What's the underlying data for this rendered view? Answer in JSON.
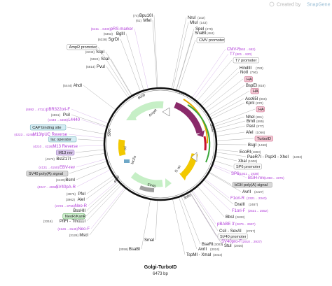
{
  "header": {
    "created_by": "Created by",
    "brand": "SnapGene"
  },
  "plasmid": {
    "name": "Golgi-TurboID",
    "size": "6473 bp"
  },
  "ticks": [
    "1000",
    "2000",
    "3000",
    "4000",
    "5000",
    "6000"
  ],
  "features": {
    "ampr": "AmpR",
    "ori": "ori",
    "cmv": "CMV enhancer",
    "f1": "f1 ori",
    "lacz": "lacZα",
    "sv40": "SV40"
  },
  "left_labels": [
    {
      "id": "pRS-marker",
      "name": "pRS-marker",
      "pos": "(6411 .. 6430)",
      "type": "primer"
    },
    {
      "id": "BglII",
      "name": "BglII",
      "pos": "(6353)",
      "type": "site"
    },
    {
      "id": "SgrDI",
      "name": "SgrDI",
      "pos": "(6338)",
      "type": "site"
    },
    {
      "id": "AmpR-promoter",
      "name": "AmpR promoter",
      "pos": "",
      "type": "box"
    },
    {
      "id": "SspI",
      "name": "SspI",
      "pos": "(6248)",
      "type": "site"
    },
    {
      "id": "ScaI",
      "name": "ScaI",
      "pos": "(5924)",
      "type": "site"
    },
    {
      "id": "PvuI",
      "name": "PvuI",
      "pos": "(5814)",
      "type": "site"
    },
    {
      "id": "AhdI",
      "name": "AhdI",
      "pos": "(5444)",
      "type": "site"
    },
    {
      "id": "pBR322ori-F",
      "name": "pBR322ori-F",
      "pos": "(4692 .. 4711)",
      "type": "primer"
    },
    {
      "id": "PciI",
      "name": "PciI",
      "pos": "(4551)",
      "type": "site"
    },
    {
      "id": "L4440",
      "name": "L4440",
      "pos": "(4448 .. 4465)",
      "type": "primer"
    },
    {
      "id": "CAP-binding-site",
      "name": "CAP binding site",
      "pos": "",
      "type": "boxteal"
    },
    {
      "id": "M13-pUC-Reverse",
      "name": "M13/pUC Reverse",
      "pos": "(4223 .. 4245)",
      "type": "primer"
    },
    {
      "id": "lac-operator",
      "name": "lac operator",
      "pos": "",
      "type": "boxteal"
    },
    {
      "id": "M13-Reverse",
      "name": "M13 Reverse",
      "pos": "(4210 .. 4226)",
      "type": "primer"
    },
    {
      "id": "M13-rev",
      "name": "M13 rev",
      "pos": "",
      "type": "boxpurple"
    },
    {
      "id": "BstZ17I",
      "name": "BstZ17I",
      "pos": "(4172)",
      "type": "site"
    },
    {
      "id": "EBV-rev",
      "name": "EBV-rev",
      "pos": "(4131 .. 4150)",
      "type": "primer"
    },
    {
      "id": "SV40-polyA-signal",
      "name": "SV40 poly(A) signal",
      "pos": "",
      "type": "boxgray"
    },
    {
      "id": "BsmI",
      "name": "BsmI",
      "pos": "(4120)",
      "type": "site"
    },
    {
      "id": "SV40pA-R",
      "name": "SV40pA-R",
      "pos": "(4047 .. 4066)",
      "type": "primer"
    },
    {
      "id": "PfoI",
      "name": "PfoI",
      "pos": "(3975)",
      "type": "site"
    },
    {
      "id": "AleI",
      "name": "AleI",
      "pos": "(3962)",
      "type": "site"
    },
    {
      "id": "Neo-R",
      "name": "Neo-R",
      "pos": "(3726 .. 3755)",
      "type": "primer"
    },
    {
      "id": "BssHII",
      "name": "BssHII",
      "pos": "",
      "type": "site"
    },
    {
      "id": "NeoR-KanR",
      "name": "NeoR/KanR",
      "pos": "",
      "type": "boxgreen"
    },
    {
      "id": "PflFI-Tth111I",
      "name": "PflFI - Tth111I",
      "pos": "(3318)",
      "type": "site"
    },
    {
      "id": "Neo-F",
      "name": "Neo-F",
      "pos": "(3126 .. 3145)",
      "type": "primer"
    },
    {
      "id": "MscI",
      "name": "MscI",
      "pos": "(3128)",
      "type": "site"
    },
    {
      "id": "BsaBI",
      "name": "BsaBI",
      "pos": "(3059)",
      "type": "site"
    },
    {
      "id": "SmaI",
      "name": "SmaI",
      "pos": "",
      "type": "site"
    }
  ],
  "right_labels": [
    {
      "id": "NruI",
      "name": "NruI",
      "pos": "(102)",
      "type": "site"
    },
    {
      "id": "MluI",
      "name": "MluI",
      "pos": "(143)",
      "type": "site"
    },
    {
      "id": "SpeI",
      "name": "SpeI",
      "pos": "(378)",
      "type": "site"
    },
    {
      "id": "SnaBI",
      "name": "SnaBI",
      "pos": "(484)",
      "type": "site"
    },
    {
      "id": "CMV-promoter",
      "name": "CMV promoter",
      "pos": "",
      "type": "box"
    },
    {
      "id": "CMV-F",
      "name": "CMV-F",
      "pos": "(663 .. 683)",
      "type": "primer"
    },
    {
      "id": "T7",
      "name": "T7",
      "pos": "(801 .. 820)",
      "type": "primer"
    },
    {
      "id": "T7-promoter",
      "name": "T7 promoter",
      "pos": "",
      "type": "box"
    },
    {
      "id": "HindIII",
      "name": "HindIII",
      "pos": "(783)",
      "type": "site"
    },
    {
      "id": "NotI",
      "name": "NotI",
      "pos": "(790)",
      "type": "site"
    },
    {
      "id": "HA1",
      "name": "HA",
      "pos": "",
      "type": "boxpink"
    },
    {
      "id": "BspEI",
      "name": "BspEI",
      "pos": "(818)",
      "type": "site"
    },
    {
      "id": "HA2",
      "name": "HA",
      "pos": "",
      "type": "boxpink"
    },
    {
      "id": "Acc65I",
      "name": "Acc65I",
      "pos": "(866)",
      "type": "site"
    },
    {
      "id": "KpnI",
      "name": "KpnI",
      "pos": "(870)",
      "type": "site"
    },
    {
      "id": "HA3",
      "name": "HA",
      "pos": "",
      "type": "boxpink"
    },
    {
      "id": "NheI",
      "name": "NheI",
      "pos": "(891)",
      "type": "site"
    },
    {
      "id": "BmtI",
      "name": "BmtI",
      "pos": "(895)",
      "type": "site"
    },
    {
      "id": "PasI",
      "name": "PasI",
      "pos": "(977)",
      "type": "site"
    },
    {
      "id": "AfeI",
      "name": "AfeI",
      "pos": "(1066)",
      "type": "site"
    },
    {
      "id": "TurboID",
      "name": "TurboID",
      "pos": "",
      "type": "boxpink"
    },
    {
      "id": "BsgI",
      "name": "BsgI",
      "pos": "(1468)",
      "type": "site"
    },
    {
      "id": "EcoRI",
      "name": "EcoRI",
      "pos": "(1893)",
      "type": "site"
    },
    {
      "id": "PaeR7I",
      "name": "PaeR7I - PspXI - XhoI",
      "pos": "(1893)",
      "type": "site"
    },
    {
      "id": "XbaI",
      "name": "XbaI",
      "pos": "(1906)",
      "type": "site"
    },
    {
      "id": "SP6-promoter",
      "name": "SP6 promoter",
      "pos": "",
      "type": "box"
    },
    {
      "id": "SP6",
      "name": "SP6",
      "pos": "(1921 .. 1938)",
      "type": "primer"
    },
    {
      "id": "BGH-rev",
      "name": "BGH-rev",
      "pos": "(1958 .. 1975)",
      "type": "primer"
    },
    {
      "id": "bGH-polyA",
      "name": "bGH poly(A) signal",
      "pos": "",
      "type": "boxgray"
    },
    {
      "id": "AvrII",
      "name": "AvrII",
      "pos": "(2227)",
      "type": "site"
    },
    {
      "id": "F1ori-R",
      "name": "F1ori-R",
      "pos": "(2321 .. 2340)",
      "type": "primer"
    },
    {
      "id": "DraIII",
      "name": "DraIII",
      "pos": "(2487)",
      "type": "site"
    },
    {
      "id": "F1ori-F",
      "name": "F1ori-F",
      "pos": "(2531 .. 2552)",
      "type": "primer"
    },
    {
      "id": "BbsI",
      "name": "BbsI",
      "pos": "(2633)",
      "type": "site"
    },
    {
      "id": "pBABE-3",
      "name": "pBABE 3'",
      "pos": "(2676 .. 2697)",
      "type": "primer"
    },
    {
      "id": "CsiI-SexAI",
      "name": "CsiI - SexAI",
      "pos": "(2757)",
      "type": "site"
    },
    {
      "id": "SV40-promoter",
      "name": "SV40 promoter",
      "pos": "",
      "type": "box"
    },
    {
      "id": "SV40pro-F",
      "name": "SV40pro-F",
      "pos": "(2918 .. 2937)",
      "type": "primer"
    },
    {
      "id": "StuI",
      "name": "StuI",
      "pos": "(2936)",
      "type": "site"
    }
  ],
  "top_labels": [
    {
      "id": "Bpu10I",
      "name": "Bpu10I",
      "pos": "(74)",
      "type": "site"
    },
    {
      "id": "MfeI",
      "name": "MfeI",
      "pos": "(61)",
      "type": "site"
    }
  ],
  "bottom_labels": [
    {
      "id": "BseRI",
      "name": "BseRI",
      "pos": "(3003)",
      "type": "site"
    },
    {
      "id": "AvrII-b",
      "name": "AvrII",
      "pos": "(3024)",
      "type": "site"
    },
    {
      "id": "TspMI-XmaI",
      "name": "TspMI - XmaI",
      "pos": "(3023)",
      "type": "site"
    }
  ]
}
